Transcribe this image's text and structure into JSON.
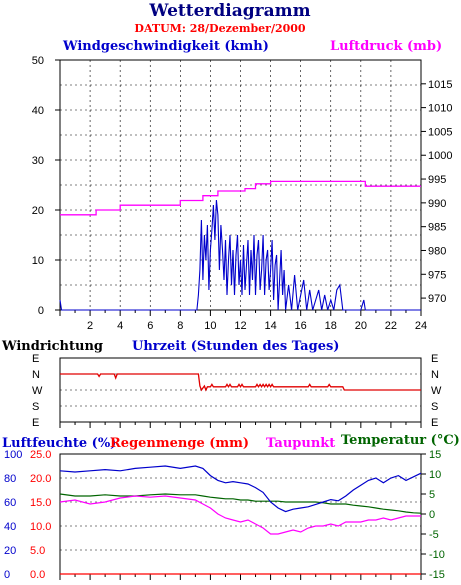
{
  "title": "Wetterdiagramm",
  "subtitle": "DATUM: 28/Dezember/2000",
  "colors": {
    "title": "#000080",
    "subtitle": "#ff0000",
    "wind": "#0000cc",
    "pressure": "#ff00ff",
    "direction": "#e00000",
    "humidity": "#0000cc",
    "rain": "#ff0000",
    "dewpoint": "#ff00ff",
    "temperature": "#006400"
  },
  "chart_data": [
    {
      "type": "line",
      "xlabel": "Uhrzeit (Stunden des Tages)",
      "xlim": [
        0,
        24
      ],
      "x_ticks": [
        "2",
        "4",
        "6",
        "8",
        "10",
        "12",
        "14",
        "16",
        "18",
        "20",
        "22",
        "24"
      ],
      "grid": true,
      "series": [
        {
          "name": "Windgeschwindigkeit (kmh)",
          "axis": "left",
          "ylim": [
            0,
            50
          ],
          "y_ticks": [
            "0",
            "10",
            "20",
            "30",
            "40",
            "50"
          ],
          "x": [
            0.0,
            0.1,
            0.2,
            9.1,
            9.2,
            9.3,
            9.4,
            9.5,
            9.6,
            9.7,
            9.8,
            9.9,
            10.0,
            10.1,
            10.2,
            10.3,
            10.4,
            10.5,
            10.6,
            10.7,
            10.8,
            10.9,
            11.0,
            11.1,
            11.2,
            11.3,
            11.4,
            11.5,
            11.6,
            11.7,
            11.8,
            11.9,
            12.0,
            12.1,
            12.2,
            12.3,
            12.4,
            12.5,
            12.6,
            12.7,
            12.8,
            12.9,
            13.0,
            13.1,
            13.2,
            13.3,
            13.4,
            13.5,
            13.6,
            13.7,
            13.8,
            13.9,
            14.0,
            14.1,
            14.2,
            14.3,
            14.4,
            14.5,
            14.6,
            14.7,
            14.8,
            14.9,
            15.0,
            15.2,
            15.4,
            15.6,
            15.8,
            16.0,
            16.2,
            16.4,
            16.6,
            16.8,
            17.0,
            17.2,
            17.4,
            17.6,
            17.8,
            18.0,
            18.2,
            18.4,
            18.6,
            18.8,
            19.0,
            20.0,
            20.2,
            20.3,
            20.4,
            20.6,
            24.0
          ],
          "values": [
            2,
            0,
            0,
            0,
            3,
            8,
            18,
            6,
            15,
            10,
            17,
            4,
            12,
            16,
            21,
            14,
            22,
            19,
            8,
            17,
            12,
            6,
            14,
            3,
            10,
            15,
            5,
            12,
            3,
            11,
            15,
            5,
            10,
            3,
            13,
            4,
            9,
            14,
            3,
            12,
            6,
            15,
            3,
            11,
            14,
            4,
            8,
            15,
            3,
            10,
            12,
            4,
            8,
            14,
            2,
            9,
            11,
            0,
            6,
            12,
            3,
            8,
            0,
            5,
            0,
            7,
            0,
            3,
            6,
            0,
            4,
            0,
            2,
            4,
            0,
            3,
            0,
            2,
            0,
            4,
            5,
            0,
            0,
            0,
            2,
            0,
            0,
            0,
            0
          ]
        },
        {
          "name": "Luftdruck (mb)",
          "axis": "right",
          "ylim": [
            967.5,
            1020
          ],
          "y_ticks": [
            "970",
            "975",
            "980",
            "985",
            "990",
            "995",
            "1000",
            "1005",
            "1010",
            "1015"
          ],
          "x": [
            0.0,
            2.4,
            2.4,
            4.0,
            4.0,
            8.0,
            8.0,
            9.5,
            9.5,
            10.5,
            10.5,
            12.3,
            12.3,
            13.0,
            13.0,
            14.0,
            14.0,
            20.3,
            20.3,
            24.0
          ],
          "values": [
            987.5,
            987.5,
            988.5,
            988.5,
            989.5,
            989.5,
            990.5,
            990.5,
            991.5,
            991.5,
            992.5,
            992.5,
            993,
            993,
            994,
            994,
            994.5,
            994.5,
            993.5,
            993.5
          ]
        }
      ]
    },
    {
      "type": "line",
      "ylabel": "Windrichtung",
      "xlabel": "Uhrzeit (Stunden des Tages)",
      "xlim": [
        0,
        24
      ],
      "categories": [
        "E",
        "N",
        "W",
        "S",
        "E"
      ],
      "grid": true,
      "series": [
        {
          "name": "Windrichtung",
          "x": [
            0.0,
            2.5,
            2.6,
            2.7,
            3.6,
            3.7,
            3.8,
            9.2,
            9.3,
            9.4,
            9.6,
            9.7,
            9.8,
            10.0,
            10.1,
            10.2,
            11.0,
            11.1,
            11.2,
            11.3,
            11.4,
            11.5,
            11.8,
            11.9,
            12.0,
            12.1,
            12.2,
            12.3,
            13.0,
            13.1,
            13.2,
            13.3,
            13.4,
            13.5,
            13.6,
            13.7,
            13.8,
            13.9,
            14.0,
            14.1,
            14.2,
            14.3,
            16.5,
            16.6,
            16.7,
            17.8,
            17.9,
            18.0,
            18.8,
            18.9,
            24.0
          ],
          "values": [
            1,
            1,
            1.15,
            1,
            1,
            1.25,
            1,
            1,
            1.75,
            2,
            1.75,
            2,
            1.8,
            1.8,
            1.65,
            1.8,
            1.8,
            1.65,
            1.8,
            1.65,
            1.8,
            1.8,
            1.8,
            1.65,
            1.8,
            1.65,
            1.8,
            1.8,
            1.8,
            1.65,
            1.8,
            1.65,
            1.8,
            1.65,
            1.8,
            1.65,
            1.8,
            1.65,
            1.8,
            1.65,
            1.8,
            1.8,
            1.8,
            1.65,
            1.8,
            1.8,
            1.65,
            1.8,
            1.8,
            2,
            2
          ]
        }
      ]
    },
    {
      "type": "line",
      "xlim": [
        0,
        24
      ],
      "grid": true,
      "y_ticks_humidity": [
        "0",
        "20",
        "40",
        "60",
        "80",
        "100"
      ],
      "y_ticks_rain": [
        "0.0",
        "5.0",
        "10.0",
        "15.0",
        "20.0",
        "25.0"
      ],
      "y_ticks_temp": [
        "-15",
        "-10",
        "-5",
        "0",
        "5",
        "10",
        "15"
      ],
      "series": [
        {
          "name": "Luftfeuchte (%)",
          "axis": "left",
          "ylim": [
            0,
            100
          ],
          "x": [
            0,
            1,
            2,
            3,
            4,
            5,
            6,
            7,
            8,
            9,
            9.5,
            10,
            10.5,
            11,
            11.5,
            12,
            12.5,
            13,
            13.5,
            14,
            14.5,
            15,
            15.5,
            16,
            16.5,
            17,
            17.5,
            18,
            18.5,
            19,
            19.5,
            20,
            20.5,
            21,
            21.5,
            22,
            22.5,
            23,
            23.5,
            24
          ],
          "values": [
            86,
            85,
            86,
            87,
            86,
            88,
            89,
            90,
            88,
            90,
            88,
            82,
            78,
            76,
            77,
            76,
            75,
            72,
            68,
            60,
            55,
            52,
            54,
            55,
            56,
            58,
            60,
            62,
            61,
            65,
            70,
            74,
            78,
            80,
            76,
            80,
            82,
            78,
            81,
            84
          ]
        },
        {
          "name": "Regenmenge (mm)",
          "axis": "left",
          "ylim": [
            0,
            25
          ],
          "x": [
            0,
            24
          ],
          "values": [
            0,
            0
          ]
        },
        {
          "name": "Taupunkt",
          "axis": "right",
          "ylim": [
            -15,
            15
          ],
          "x": [
            0,
            1,
            2,
            3,
            4,
            5,
            6,
            7,
            8,
            9,
            9.5,
            10,
            10.5,
            11,
            11.5,
            12,
            12.5,
            13,
            13.5,
            14,
            14.5,
            15,
            15.5,
            16,
            16.5,
            17,
            17.5,
            18,
            18.5,
            19,
            19.5,
            20,
            20.5,
            21,
            21.5,
            22,
            22.5,
            23,
            23.5,
            24
          ],
          "values": [
            3,
            3.5,
            2.5,
            3,
            4,
            4.5,
            4.2,
            4.5,
            4,
            3.5,
            2.5,
            1.5,
            0,
            -1,
            -1.5,
            -2,
            -1.5,
            -2.5,
            -3.5,
            -5,
            -5,
            -4.5,
            -4,
            -4.5,
            -3.5,
            -3,
            -3,
            -2.5,
            -3,
            -2,
            -2,
            -2,
            -1.5,
            -1.5,
            -1,
            -1.5,
            -1,
            -0.5,
            -0.5,
            -0.5
          ]
        },
        {
          "name": "Temperatur (°C)",
          "axis": "right",
          "ylim": [
            -15,
            15
          ],
          "x": [
            0,
            1,
            2,
            3,
            4,
            5,
            6,
            7,
            8,
            9,
            9.5,
            10,
            10.5,
            11,
            11.5,
            12,
            12.5,
            13,
            13.5,
            14,
            14.5,
            15,
            15.5,
            16,
            16.5,
            17,
            17.5,
            18,
            18.5,
            19,
            19.5,
            20,
            20.5,
            21,
            21.5,
            22,
            22.5,
            23,
            23.5,
            24
          ],
          "values": [
            5,
            4.5,
            4.5,
            4.8,
            4.5,
            4.5,
            4.8,
            5,
            4.8,
            4.8,
            4.5,
            4.2,
            4,
            3.8,
            3.8,
            3.5,
            3.5,
            3.2,
            3.2,
            3.2,
            3.2,
            3,
            3,
            3,
            3,
            3,
            2.8,
            2.5,
            2.5,
            2.5,
            2.2,
            2,
            1.8,
            1.5,
            1.2,
            1,
            0.8,
            0.5,
            0.3,
            0.2
          ]
        }
      ]
    }
  ]
}
